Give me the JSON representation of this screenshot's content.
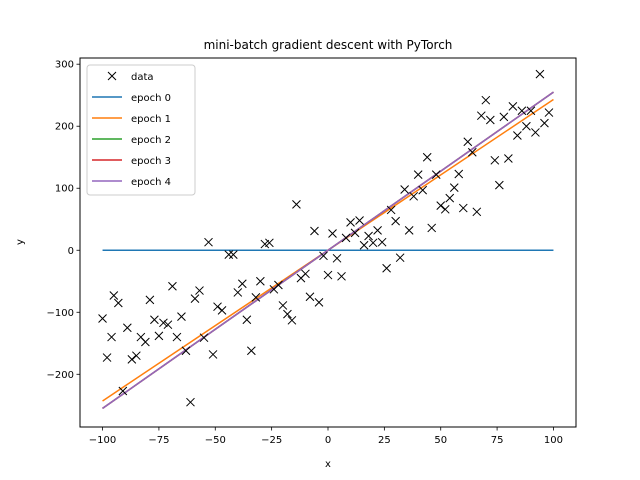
{
  "chart_data": {
    "type": "scatter+line",
    "title": "mini-batch gradient descent with PyTorch",
    "xlabel": "x",
    "ylabel": "y",
    "xlim": [
      -110,
      110
    ],
    "ylim": [
      -285,
      310
    ],
    "xticks": [
      -100,
      -75,
      -50,
      -25,
      0,
      25,
      50,
      75,
      100
    ],
    "yticks": [
      -200,
      -100,
      0,
      100,
      200,
      300
    ],
    "legend_position": "top-left",
    "scatter": {
      "name": "data",
      "color": "#000000",
      "marker": "x",
      "points": [
        [
          -100,
          -110
        ],
        [
          -98,
          -173
        ],
        [
          -96,
          -140
        ],
        [
          -95,
          -73
        ],
        [
          -93,
          -85
        ],
        [
          -91,
          -227
        ],
        [
          -89,
          -125
        ],
        [
          -87,
          -176
        ],
        [
          -85,
          -170
        ],
        [
          -83,
          -140
        ],
        [
          -81,
          -148
        ],
        [
          -79,
          -80
        ],
        [
          -77,
          -112
        ],
        [
          -75,
          -138
        ],
        [
          -73,
          -117
        ],
        [
          -71,
          -120
        ],
        [
          -69,
          -58
        ],
        [
          -67,
          -140
        ],
        [
          -65,
          -107
        ],
        [
          -63,
          -162
        ],
        [
          -61,
          -245
        ],
        [
          -59,
          -78
        ],
        [
          -57,
          -65
        ],
        [
          -55,
          -141
        ],
        [
          -53,
          13
        ],
        [
          -51,
          -168
        ],
        [
          -49,
          -91
        ],
        [
          -47,
          -97
        ],
        [
          -44,
          -7
        ],
        [
          -42,
          -7
        ],
        [
          -40,
          -68
        ],
        [
          -38,
          -54
        ],
        [
          -36,
          -112
        ],
        [
          -34,
          -162
        ],
        [
          -32,
          -76
        ],
        [
          -30,
          -50
        ],
        [
          -28,
          10
        ],
        [
          -26,
          12
        ],
        [
          -24,
          -63
        ],
        [
          -22,
          -56
        ],
        [
          -20,
          -89
        ],
        [
          -18,
          -103
        ],
        [
          -16,
          -113
        ],
        [
          -14,
          74
        ],
        [
          -12,
          -45
        ],
        [
          -10,
          -38
        ],
        [
          -8,
          -75
        ],
        [
          -6,
          31
        ],
        [
          -4,
          -84
        ],
        [
          -2,
          -9
        ],
        [
          0,
          -40
        ],
        [
          2,
          27
        ],
        [
          4,
          -13
        ],
        [
          6,
          -42
        ],
        [
          8,
          20
        ],
        [
          10,
          45
        ],
        [
          12,
          28
        ],
        [
          14,
          48
        ],
        [
          16,
          8
        ],
        [
          18,
          23
        ],
        [
          20,
          12
        ],
        [
          22,
          32
        ],
        [
          24,
          13
        ],
        [
          26,
          -29
        ],
        [
          28,
          65
        ],
        [
          30,
          47
        ],
        [
          32,
          -12
        ],
        [
          34,
          98
        ],
        [
          36,
          32
        ],
        [
          38,
          87
        ],
        [
          40,
          122
        ],
        [
          42,
          97
        ],
        [
          44,
          150
        ],
        [
          46,
          36
        ],
        [
          48,
          122
        ],
        [
          50,
          72
        ],
        [
          52,
          66
        ],
        [
          54,
          84
        ],
        [
          56,
          101
        ],
        [
          58,
          123
        ],
        [
          60,
          68
        ],
        [
          62,
          175
        ],
        [
          64,
          158
        ],
        [
          66,
          62
        ],
        [
          68,
          217
        ],
        [
          70,
          242
        ],
        [
          72,
          210
        ],
        [
          74,
          145
        ],
        [
          76,
          105
        ],
        [
          78,
          215
        ],
        [
          80,
          148
        ],
        [
          82,
          232
        ],
        [
          84,
          185
        ],
        [
          86,
          225
        ],
        [
          88,
          200
        ],
        [
          90,
          225
        ],
        [
          92,
          190
        ],
        [
          94,
          284
        ],
        [
          96,
          205
        ],
        [
          98,
          222
        ]
      ]
    },
    "series": [
      {
        "name": "epoch 0",
        "color": "#1f77b4",
        "x": [
          -100,
          100
        ],
        "y": [
          0,
          0
        ]
      },
      {
        "name": "epoch 1",
        "color": "#ff7f0e",
        "x": [
          -100,
          100
        ],
        "y": [
          -243,
          243
        ]
      },
      {
        "name": "epoch 2",
        "color": "#2ca02c",
        "x": [
          -100,
          100
        ],
        "y": [
          -255,
          255
        ]
      },
      {
        "name": "epoch 3",
        "color": "#d62728",
        "x": [
          -100,
          100
        ],
        "y": [
          -255,
          255
        ]
      },
      {
        "name": "epoch 4",
        "color": "#9467bd",
        "x": [
          -100,
          100
        ],
        "y": [
          -255,
          255
        ]
      }
    ]
  }
}
